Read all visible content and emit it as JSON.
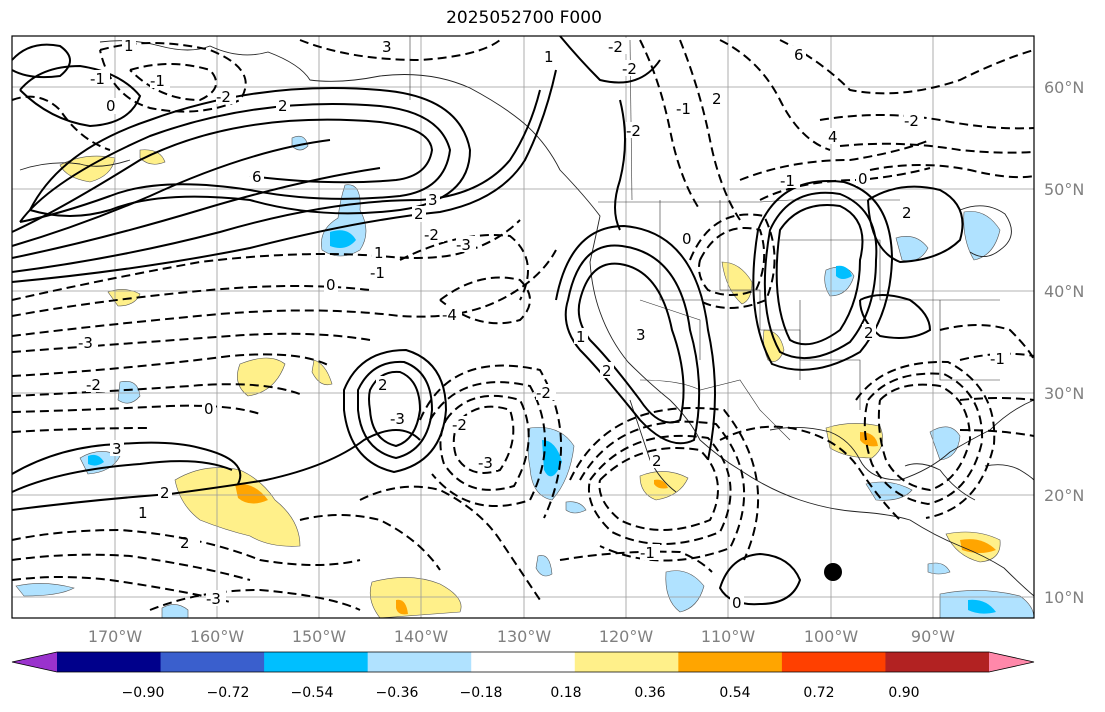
{
  "title": "2025052700 F000",
  "map": {
    "lat_labels": [
      "60°N",
      "50°N",
      "40°N",
      "30°N",
      "20°N",
      "10°N"
    ],
    "lon_labels": [
      "170°W",
      "160°W",
      "150°W",
      "140°W",
      "130°W",
      "120°W",
      "110°W",
      "100°W",
      "90°W"
    ],
    "contour_labels": [
      "1",
      "-1",
      "-1",
      "-2",
      "2",
      "0",
      "3",
      "6",
      "3",
      "2",
      "1",
      "0",
      "-1",
      "-2",
      "-3",
      "-4",
      "-3",
      "-3",
      "-2",
      "0",
      "2",
      "3",
      "-3",
      "-2",
      "2",
      "1",
      "2",
      "-3",
      "-2",
      "0",
      "-1",
      "1",
      "2",
      "2",
      "3",
      "6",
      "4",
      "2",
      "-2",
      "-2",
      "-2",
      "-1",
      "-2",
      "2",
      "-1",
      "0",
      "1",
      "-1",
      "2",
      "0"
    ],
    "marker": "black-dot"
  },
  "colorbar": {
    "colors": [
      "#9a32cd",
      "#00008b",
      "#3a5fcd",
      "#00bfff",
      "#b0e2ff",
      "#ffffff",
      "#fff08a",
      "#ffa500",
      "#ff4000",
      "#b22222",
      "#ff88aa"
    ],
    "tick_labels": [
      "−0.90",
      "−0.72",
      "−0.54",
      "−0.36",
      "−0.18",
      "0.18",
      "0.36",
      "0.54",
      "0.72",
      "0.90"
    ]
  }
}
